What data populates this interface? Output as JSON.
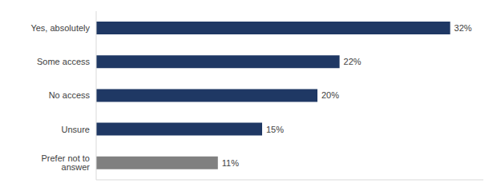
{
  "chart_data": {
    "type": "bar",
    "orientation": "horizontal",
    "categories": [
      "Yes, absolutely",
      "Some access",
      "No access",
      "Unsure",
      "Prefer not to answer"
    ],
    "values": [
      32,
      22,
      20,
      15,
      11
    ],
    "value_labels": [
      "32%",
      "22%",
      "20%",
      "15%",
      "11%"
    ],
    "colors": [
      "#1f3864",
      "#1f3864",
      "#1f3864",
      "#1f3864",
      "#808080"
    ],
    "xlim": [
      0,
      35
    ],
    "data_labels": true,
    "tick_labels": "y",
    "grid": false
  }
}
